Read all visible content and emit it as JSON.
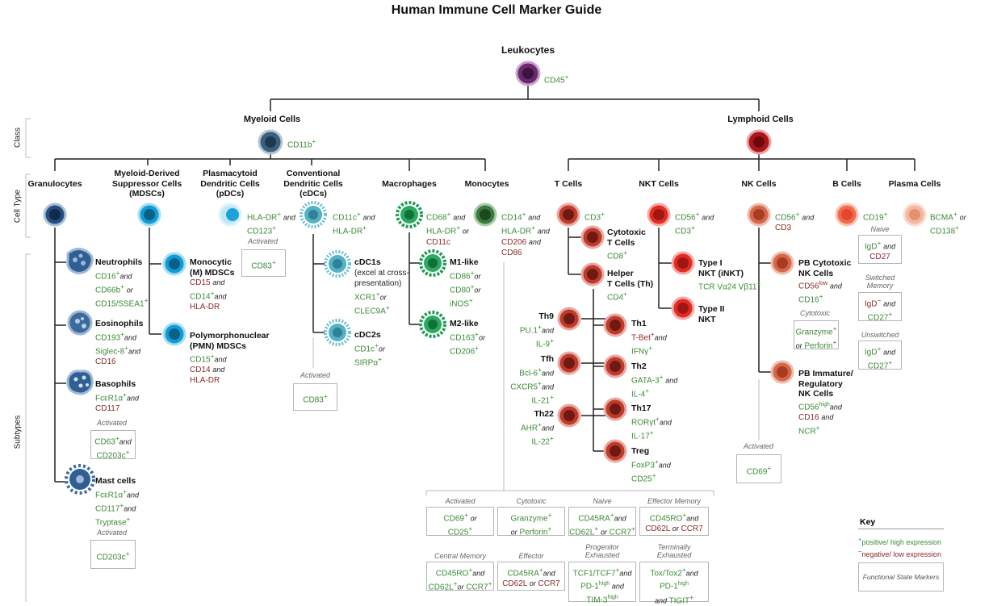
{
  "title": "Human Immune Cell Marker Guide",
  "side_labels": {
    "class": "Class",
    "cell_type": "Cell Type",
    "subtypes": "Subtypes"
  },
  "colors": {
    "positive": "#3d8b37",
    "negative": "#8b2a2a",
    "line": "#222222"
  },
  "leukocytes": {
    "name": "Leukocytes",
    "marker": "CD45"
  },
  "myeloid": {
    "name": "Myeloid Cells",
    "marker": "CD11b"
  },
  "lymphoid": {
    "name": "Lymphoid Cells"
  },
  "granulocytes": {
    "name": "Granulocytes"
  },
  "mdsc": {
    "name1": "Myeloid-Derived",
    "name2": "Suppressor Cells",
    "name3": "(MDSCs)"
  },
  "pdc": {
    "name1": "Plasmacytoid",
    "name2": "Dendritic Cells",
    "name3": "(pDCs)",
    "m1": "HLA-DR",
    "and": "and",
    "m2": "CD123",
    "activated": "Activated",
    "act_marker": "CD83"
  },
  "cdc": {
    "name1": "Conventional",
    "name2": "Dendritic Cells",
    "name3": "(cDCs)",
    "m1": "CD11c",
    "and": "and",
    "m2": "HLA-DR",
    "activated": "Activated",
    "act_marker": "CD83"
  },
  "macrophages": {
    "name": "Macrophages",
    "m1": "CD68",
    "and": "and",
    "m2": "HLA-DR",
    "m3": "CD11c"
  },
  "monocytes": {
    "name": "Monocytes",
    "m1": "CD14",
    "and": "and",
    "m2": "HLA-DR",
    "and2": "and",
    "m3": "CD206",
    "and3": "and",
    "m4": "CD86"
  },
  "tcells": {
    "name": "T Cells",
    "marker": "CD3"
  },
  "nkt": {
    "name": "NKT Cells",
    "m1": "CD56",
    "and": "and",
    "m2": "CD3"
  },
  "nk": {
    "name": "NK Cells",
    "m1": "CD56",
    "and": "and",
    "m2": "CD3"
  },
  "bcells": {
    "name": "B Cells",
    "marker": "CD19",
    "naive": "Naive",
    "naive_m1": "IgD",
    "naive_and": "and",
    "naive_m2": "CD27",
    "switched1": "Switched",
    "switched2": "Memory",
    "sw_m1": "IgD",
    "sw_and": "and",
    "sw_m2": "CD27",
    "unswitched": "Unswitched",
    "un_m1": "IgD",
    "un_and": "and",
    "un_m2": "CD27"
  },
  "plasma": {
    "name": "Plasma Cells",
    "m1": "BCMA",
    "or": "or",
    "m2": "CD138"
  },
  "neutrophils": {
    "name": "Neutrophils",
    "m1": "CD16",
    "and": "and",
    "m2": "CD66b",
    "or": "or",
    "m3": "CD15/SSEA1"
  },
  "eosinophils": {
    "name": "Eosinophils",
    "m1": "CD193",
    "and": "and",
    "m2": "Siglec-8",
    "and2": "and",
    "m3": "CD16"
  },
  "basophils": {
    "name": "Basophils",
    "m1": "FcεR1α",
    "and": "and",
    "m2": "CD117",
    "activated": "Activated",
    "act_m1": "CD63",
    "act_and": "and",
    "act_m2": "CD203c"
  },
  "mast": {
    "name": "Mast cells",
    "m1": "FcεR1α",
    "and": "and",
    "m2": "CD117",
    "and2": "and",
    "m3": "Tryptase",
    "activated": "Activated",
    "act_marker": "CD203c"
  },
  "m_mdsc": {
    "name1": "Monocytic",
    "name2": "(M) MDSCs",
    "m1": "CD15",
    "and": "and",
    "m2": "CD14",
    "and2": "and",
    "m3": "HLA-DR"
  },
  "pmn_mdsc": {
    "name1": "Polymorphonuclear",
    "name2": "(PMN) MDSCs",
    "m1": "CD15",
    "and": "and",
    "m2": "CD14",
    "and2": "and",
    "m3": "HLA-DR"
  },
  "cdc1": {
    "name": "cDC1s",
    "note1": "(excel at cross-",
    "note2": "presentation)",
    "m1": "XCR1",
    "or": "or",
    "m2": "CLEC9A"
  },
  "cdc2": {
    "name": "cDC2s",
    "m1": "CD1c",
    "or": "or",
    "m2": "SIRPα"
  },
  "m1like": {
    "name": "M1-like",
    "m1": "CD86",
    "or": "or",
    "m2": "CD80",
    "or2": "or",
    "m3": "iNOS"
  },
  "m2like": {
    "name": "M2-like",
    "m1": "CD163",
    "or": "or",
    "m2": "CD206"
  },
  "cytotoxic_t": {
    "name1": "Cytotoxic",
    "name2": "T Cells",
    "marker": "CD8"
  },
  "helper_t": {
    "name1": "Helper",
    "name2": "T Cells (Th)",
    "marker": "CD4"
  },
  "th9": {
    "name": "Th9",
    "m1": "PU.1",
    "and": "and",
    "m2": "IL-9"
  },
  "tfh": {
    "name": "Tfh",
    "m1": "Bcl-6",
    "and": "and",
    "m2": "CXCR5",
    "and2": "and",
    "m3": "IL-21"
  },
  "th22": {
    "name": "Th22",
    "m1": "AHR",
    "and": "and",
    "m2": "IL-22"
  },
  "th1": {
    "name": "Th1",
    "m1": "T-Bet",
    "and": "and",
    "m2": "IFNγ"
  },
  "th2": {
    "name": "Th2",
    "m1": "GATA-3",
    "and": "and",
    "m2": "IL-4"
  },
  "th17": {
    "name": "Th17",
    "m1": "RORγt",
    "and": "and",
    "m2": "IL-17"
  },
  "treg": {
    "name": "Treg",
    "m1": "FoxP3",
    "and": "and",
    "m2": "CD25"
  },
  "inkt": {
    "name1": "Type I",
    "name2": "NKT (iNKT)",
    "marker": "TCR Vα24 Vβ11"
  },
  "nkt2": {
    "name1": "Type II",
    "name2": "NKT"
  },
  "pb_cyto": {
    "name1": "PB Cytotoxic",
    "name2": "NK Cells",
    "m1": "CD56",
    "m1_sup": "low",
    "and": "and",
    "m2": "CD16",
    "cytotoxic": "Cytotoxic",
    "cy_m1": "Granzyme",
    "cy_or": "or",
    "cy_m2": "Perforin"
  },
  "pb_immature": {
    "name1": "PB Immature/",
    "name2": "Regulatory",
    "name3": "NK Cells",
    "m1": "CD56",
    "m1_sup": "high",
    "and": "and",
    "m2": "CD16",
    "and2": "and",
    "m3": "NCR"
  },
  "nk_activated": {
    "label": "Activated",
    "marker": "CD69"
  },
  "tstates": {
    "activated": {
      "label": "Activated",
      "m1": "CD69",
      "or": "or",
      "m2": "CD25"
    },
    "cytotoxic": {
      "label": "Cytotoxic",
      "m1": "Granzyme",
      "or": "or",
      "m2": "Perforin"
    },
    "naive": {
      "label": "Naive",
      "m1": "CD45RA",
      "and": "and",
      "m2": "CD62L",
      "or": "or",
      "m3": "CCR7"
    },
    "effector_memory": {
      "label": "Effector Memory",
      "m1": "CD45RO",
      "and": "and",
      "m2": "CD62L",
      "or": "or",
      "m3": "CCR7"
    },
    "central_memory": {
      "label": "Central Memory",
      "m1": "CD45RO",
      "and": "and",
      "m2": "CD62L",
      "or": "or",
      "m3": "CCR7"
    },
    "effector": {
      "label": "Effector",
      "m1": "CD45RA",
      "and": "and",
      "m2": "CD62L",
      "or": "or",
      "m3": "CCR7"
    },
    "progenitor": {
      "label1": "Progenitor",
      "label2": "Exhausted",
      "m1": "TCF1/TCF7",
      "and": "and",
      "m2": "PD-1",
      "m2_sup": "high",
      "and2": "and",
      "m3": "TIM-3",
      "m3_sup": "high"
    },
    "terminal": {
      "label1": "Terminally",
      "label2": "Exhausted",
      "m1": "Tox/Tox2",
      "and": "and",
      "m2": "PD-1",
      "m2_sup": "high",
      "and2": "and",
      "m3": "TIGIT"
    }
  },
  "key": {
    "title": "Key",
    "pos_sym": "+",
    "pos": "positive/ high expression",
    "neg_sym": "−",
    "neg": "negative/ low expression",
    "fsm": "Functional State Markers"
  }
}
